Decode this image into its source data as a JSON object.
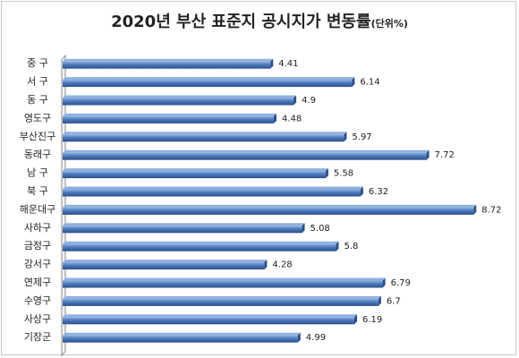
{
  "title": "2020년 부산 표준지 공시지가 변동률",
  "unit": "(단위%)",
  "colors": {
    "bar": "#4a78bd",
    "bar_dark": "#2d4f86",
    "bar_light": "#8fb0e0",
    "axis": "#8c8c8c"
  },
  "chart_data": {
    "type": "bar",
    "orientation": "horizontal",
    "title": "2020년 부산 표준지 공시지가 변동률",
    "unit": "(단위%)",
    "categories": [
      "중 구",
      "서 구",
      "동 구",
      "영도구",
      "부산진구",
      "동래구",
      "남 구",
      "북 구",
      "해운대구",
      "사하구",
      "금정구",
      "강서구",
      "연제구",
      "수영구",
      "사상구",
      "기장군"
    ],
    "values": [
      4.41,
      6.14,
      4.9,
      4.48,
      5.97,
      7.72,
      5.58,
      6.32,
      8.72,
      5.08,
      5.8,
      4.28,
      6.79,
      6.7,
      6.19,
      4.99
    ],
    "value_labels": [
      "4.41",
      "6.14",
      "4.9",
      "4.48",
      "5.97",
      "7.72",
      "5.58",
      "6.32",
      "8.72",
      "5.08",
      "5.8",
      "4.28",
      "6.79",
      "6.7",
      "6.19",
      "4.99"
    ],
    "xlim": [
      0,
      9
    ],
    "grid": false,
    "legend": "none"
  }
}
